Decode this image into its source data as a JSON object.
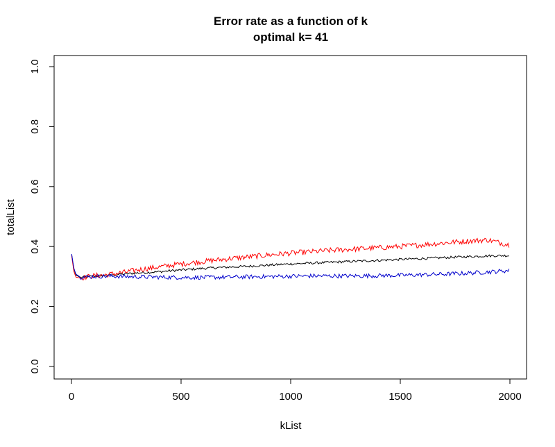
{
  "chart_data": {
    "type": "line",
    "title": "Error rate as a function of k",
    "subtitle": "optimal k= 41",
    "xlabel": "kList",
    "ylabel": "totalList",
    "xlim": [
      0,
      2000
    ],
    "ylim": [
      0.0,
      1.0
    ],
    "x_ticks": [
      "0",
      "500",
      "1000",
      "1500",
      "2000"
    ],
    "y_ticks": [
      "0.0",
      "0.2",
      "0.4",
      "0.6",
      "0.8",
      "1.0"
    ],
    "grid": false,
    "legend": "none",
    "series": [
      {
        "color": "#000000",
        "x": [
          1,
          10,
          20,
          41,
          60,
          100,
          150,
          200,
          250,
          300,
          400,
          500,
          600,
          700,
          800,
          900,
          1000,
          1100,
          1200,
          1300,
          1400,
          1500,
          1600,
          1700,
          1800,
          1900,
          2000
        ],
        "y": [
          0.372,
          0.33,
          0.305,
          0.297,
          0.298,
          0.301,
          0.303,
          0.306,
          0.309,
          0.312,
          0.316,
          0.322,
          0.327,
          0.331,
          0.334,
          0.338,
          0.342,
          0.345,
          0.348,
          0.351,
          0.354,
          0.357,
          0.36,
          0.363,
          0.366,
          0.369,
          0.37
        ]
      },
      {
        "color": "#ff0000",
        "x": [
          1,
          10,
          20,
          41,
          60,
          100,
          150,
          200,
          250,
          300,
          400,
          500,
          600,
          700,
          800,
          900,
          1000,
          1100,
          1200,
          1300,
          1400,
          1500,
          1600,
          1700,
          1800,
          1900,
          2000
        ],
        "y": [
          0.37,
          0.32,
          0.298,
          0.295,
          0.298,
          0.302,
          0.305,
          0.31,
          0.315,
          0.322,
          0.332,
          0.342,
          0.35,
          0.358,
          0.365,
          0.372,
          0.378,
          0.383,
          0.388,
          0.392,
          0.396,
          0.4,
          0.406,
          0.412,
          0.418,
          0.422,
          0.405
        ]
      },
      {
        "color": "#0000cc",
        "x": [
          1,
          10,
          20,
          41,
          60,
          100,
          150,
          200,
          250,
          300,
          400,
          500,
          600,
          700,
          800,
          900,
          1000,
          1100,
          1200,
          1300,
          1400,
          1500,
          1600,
          1700,
          1800,
          1900,
          2000
        ],
        "y": [
          0.375,
          0.33,
          0.308,
          0.298,
          0.298,
          0.3,
          0.301,
          0.301,
          0.3,
          0.299,
          0.298,
          0.297,
          0.297,
          0.298,
          0.299,
          0.3,
          0.301,
          0.302,
          0.302,
          0.302,
          0.303,
          0.304,
          0.306,
          0.308,
          0.311,
          0.315,
          0.32
        ]
      }
    ]
  }
}
